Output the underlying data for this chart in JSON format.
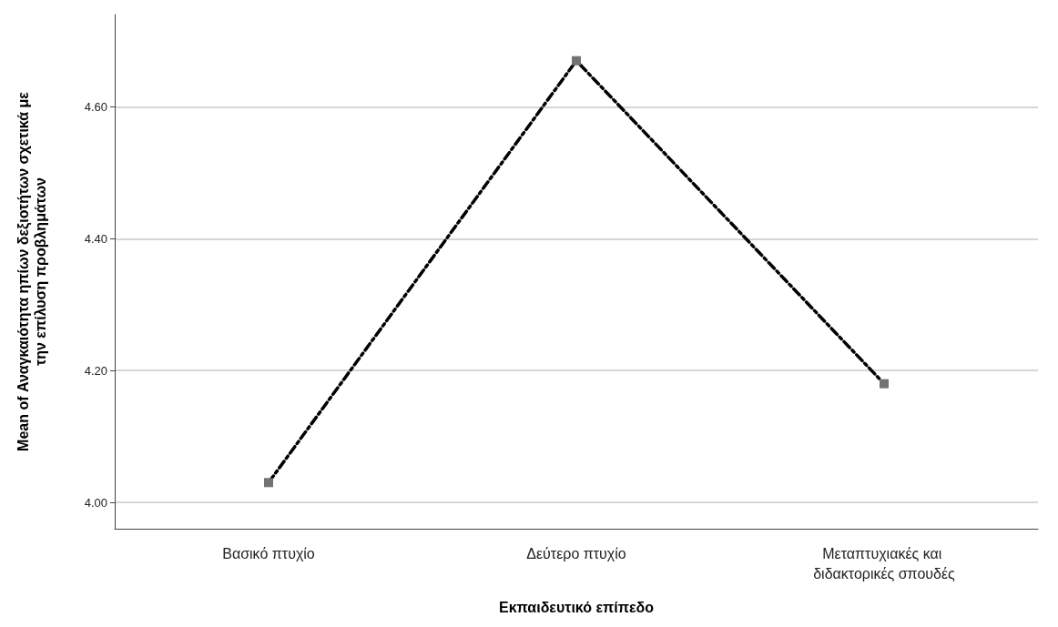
{
  "chart_data": {
    "type": "line",
    "xlabel": "Εκπαιδευτικό επίπεδο",
    "ylabel": "Mean of Αναγκαιότητα ηπίων δεξιοτήτων σχετικά με την επίλυση προβλημάτων",
    "categories": [
      "Βασικό πτυχίο",
      "Δεύτερο πτυχίο",
      "Μεταπτυχιακές και διδακτορικές σπουδές"
    ],
    "series": [
      {
        "color": "#000000",
        "values": [
          4.03,
          4.67,
          4.18
        ]
      }
    ],
    "ylim": [
      3.96,
      4.74
    ],
    "yticks": [
      {
        "value": 4.0,
        "label": "4.00"
      },
      {
        "value": 4.2,
        "label": "4.20"
      },
      {
        "value": 4.4,
        "label": "4.40"
      },
      {
        "value": 4.6,
        "label": "4.60"
      }
    ],
    "grid": "y",
    "marker": "square",
    "line_style": "dashed"
  }
}
